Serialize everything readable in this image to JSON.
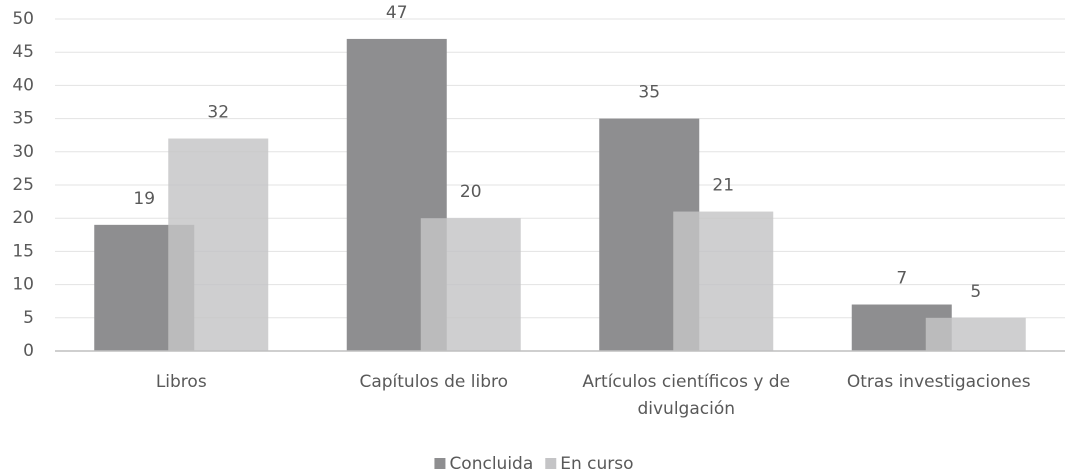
{
  "chart_data": {
    "type": "bar",
    "categories": [
      "Libros",
      "Capítulos de libro",
      "Artículos científicos y de divulgación",
      "Otras investigaciones"
    ],
    "series": [
      {
        "name": "Concluida",
        "color": "#8e8e90",
        "values": [
          19,
          47,
          35,
          7
        ]
      },
      {
        "name": "En curso",
        "color": "#c4c4c6",
        "values": [
          32,
          20,
          21,
          5
        ]
      }
    ],
    "ylim": [
      0,
      50
    ],
    "yticks": [
      0,
      5,
      10,
      15,
      20,
      25,
      30,
      35,
      40,
      45,
      50
    ],
    "grid": true,
    "legend": "bottom"
  }
}
